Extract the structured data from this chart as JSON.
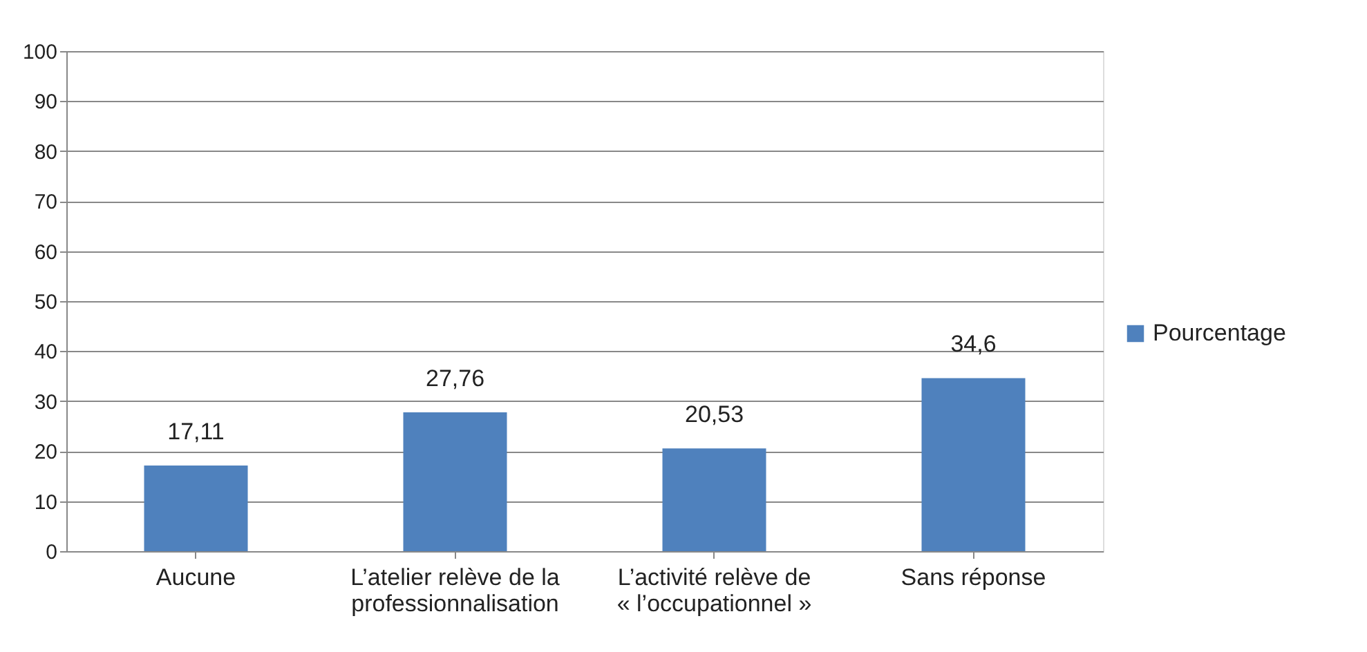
{
  "chart_data": {
    "type": "bar",
    "categories": [
      "Aucune",
      "L’atelier relève de la\nprofessionnalisation",
      "L’activité relève de\n« l’occupationnel »",
      "Sans réponse"
    ],
    "series": [
      {
        "name": "Pourcentage",
        "color": "#4f81bd",
        "values": [
          17.11,
          27.76,
          20.53,
          34.6
        ],
        "value_labels": [
          "17,11",
          "27,76",
          "20,53",
          "34,6"
        ]
      }
    ],
    "ylim": [
      0,
      100
    ],
    "yticks": [
      0,
      10,
      20,
      30,
      40,
      50,
      60,
      70,
      80,
      90,
      100
    ],
    "grid": "y",
    "legend": "right"
  }
}
